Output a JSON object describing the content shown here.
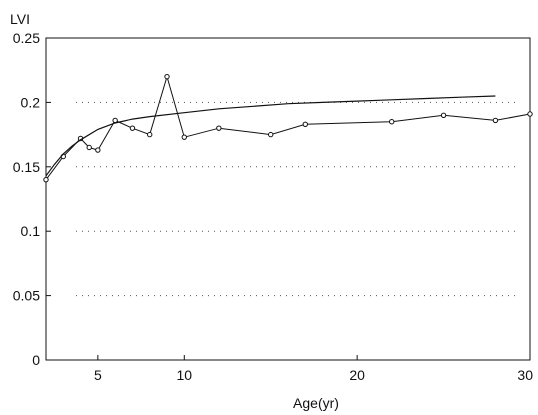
{
  "chart_data": {
    "type": "line",
    "xlabel": "Age(yr)",
    "ylabel": "LVI",
    "xlim": [
      2,
      30
    ],
    "ylim": [
      0,
      0.25
    ],
    "xticks": [
      5,
      10,
      20,
      30
    ],
    "yticks": [
      0,
      0.05,
      0.1,
      0.15,
      0.2,
      0.25
    ],
    "ytick_labels": [
      "0",
      "0.05",
      "0.1",
      "0.15",
      "0.2",
      "0.25"
    ],
    "grid": "dotted horizontal",
    "series": [
      {
        "kind": "observed",
        "marker": "circle",
        "x": [
          2,
          3,
          4,
          4.5,
          5,
          6,
          7,
          8,
          9,
          10,
          12,
          15,
          17,
          22,
          25,
          28,
          30
        ],
        "y": [
          0.14,
          0.158,
          0.172,
          0.165,
          0.163,
          0.186,
          0.18,
          0.175,
          0.22,
          0.173,
          0.18,
          0.175,
          0.183,
          0.185,
          0.19,
          0.186,
          0.191
        ]
      },
      {
        "kind": "fitted",
        "marker": "none",
        "x": [
          2,
          2.5,
          3,
          3.5,
          4,
          5,
          6,
          7,
          8,
          10,
          12,
          14,
          16,
          18,
          20,
          22,
          24,
          26,
          28
        ],
        "y": [
          0.143,
          0.152,
          0.16,
          0.166,
          0.171,
          0.179,
          0.184,
          0.187,
          0.189,
          0.192,
          0.195,
          0.197,
          0.199,
          0.2,
          0.201,
          0.202,
          0.203,
          0.204,
          0.205
        ]
      }
    ]
  }
}
